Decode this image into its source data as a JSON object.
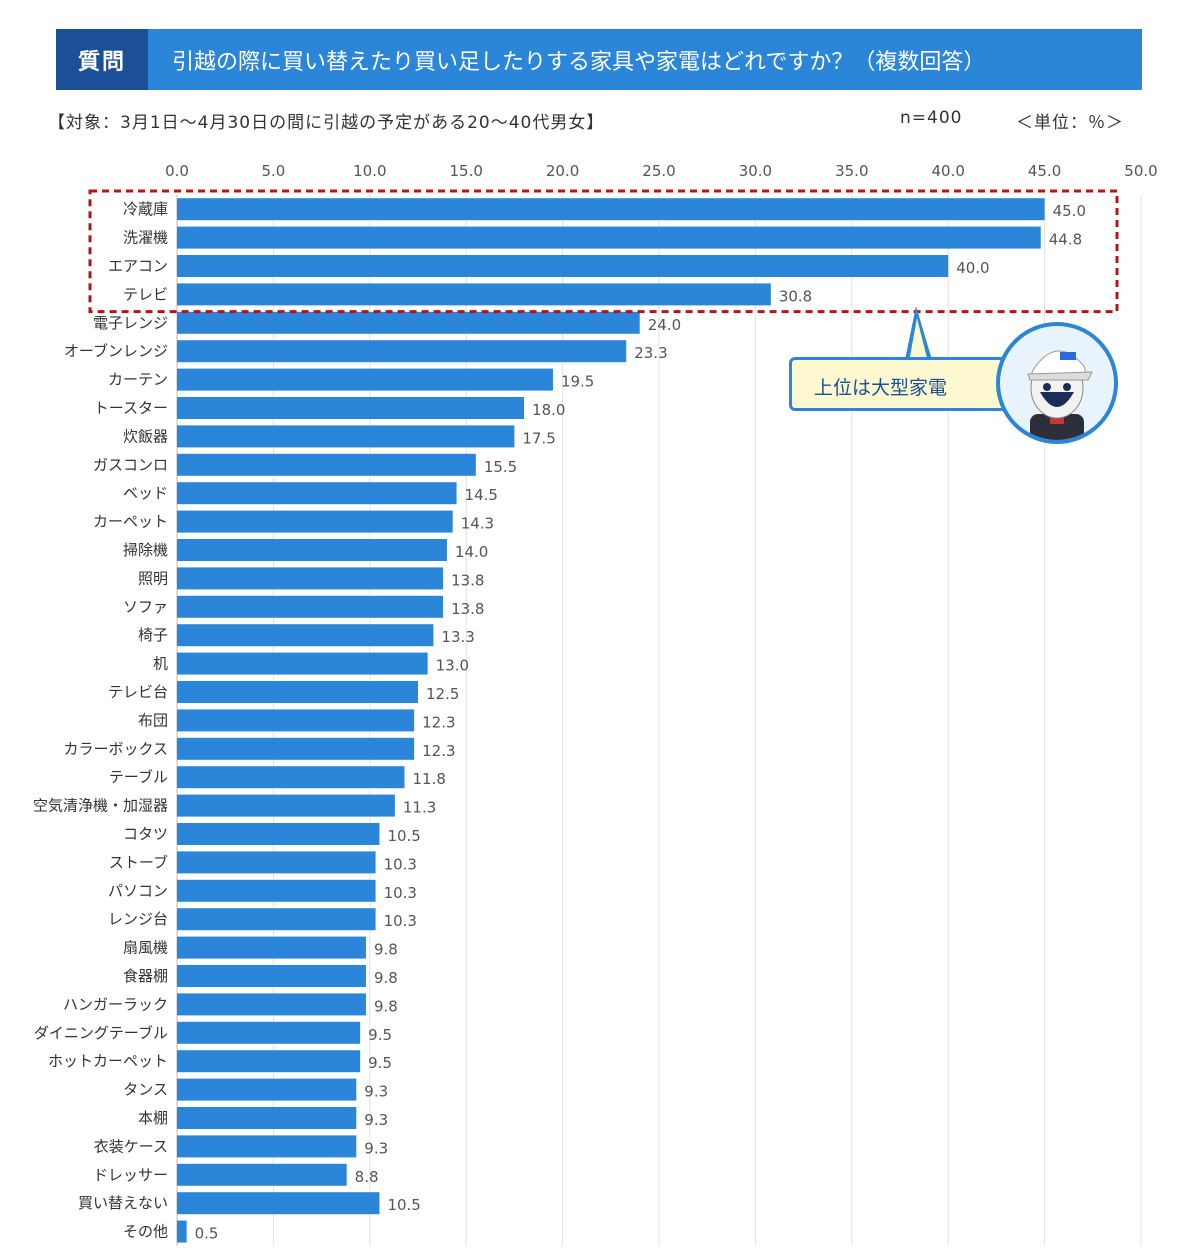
{
  "header": {
    "question_label": "質問",
    "question_text": "引越の際に買い替えたり買い足したりする家具や家電はどれですか？（複数回答）",
    "target_text": "【対象：3月1日～4月30日の間に引越の予定がある20～40代男女】",
    "sample_text": "n=400",
    "unit_text": "＜単位：％＞"
  },
  "callout": {
    "text": "上位は大型家電"
  },
  "colors": {
    "bar": "#2b86d9",
    "title_bar": "#2b86d9",
    "label_box": "#1b4f97",
    "highlight": "#b01818",
    "callout_bg": "#fdf8d0"
  },
  "chart_data": {
    "type": "bar",
    "orientation": "horizontal",
    "xlim": [
      0,
      50
    ],
    "ticks": [
      "0.0",
      "5.0",
      "10.0",
      "15.0",
      "20.0",
      "25.0",
      "30.0",
      "35.0",
      "40.0",
      "45.0",
      "50.0"
    ],
    "grid": true,
    "categories": [
      "冷蔵庫",
      "洗濯機",
      "エアコン",
      "テレビ",
      "電子レンジ",
      "オーブンレンジ",
      "カーテン",
      "トースター",
      "炊飯器",
      "ガスコンロ",
      "ベッド",
      "カーペット",
      "掃除機",
      "照明",
      "ソファ",
      "椅子",
      "机",
      "テレビ台",
      "布団",
      "カラーボックス",
      "テーブル",
      "空気清浄機・加湿器",
      "コタツ",
      "ストーブ",
      "パソコン",
      "レンジ台",
      "扇風機",
      "食器棚",
      "ハンガーラック",
      "ダイニングテーブル",
      "ホットカーペット",
      "タンス",
      "本棚",
      "衣装ケース",
      "ドレッサー",
      "買い替えない",
      "その他"
    ],
    "values": [
      45.0,
      44.8,
      40.0,
      30.8,
      24.0,
      23.3,
      19.5,
      18.0,
      17.5,
      15.5,
      14.5,
      14.3,
      14.0,
      13.8,
      13.8,
      13.3,
      13.0,
      12.5,
      12.3,
      12.3,
      11.8,
      11.3,
      10.5,
      10.3,
      10.3,
      10.3,
      9.8,
      9.8,
      9.8,
      9.5,
      9.5,
      9.3,
      9.3,
      9.3,
      8.8,
      10.5,
      0.5
    ],
    "value_labels": [
      "45.0",
      "44.8",
      "40.0",
      "30.8",
      "24.0",
      "23.3",
      "19.5",
      "18.0",
      "17.5",
      "15.5",
      "14.5",
      "14.3",
      "14.0",
      "13.8",
      "13.8",
      "13.3",
      "13.0",
      "12.5",
      "12.3",
      "12.3",
      "11.8",
      "11.3",
      "10.5",
      "10.3",
      "10.3",
      "10.3",
      "9.8",
      "9.8",
      "9.8",
      "9.5",
      "9.5",
      "9.3",
      "9.3",
      "9.3",
      "8.8",
      "10.5",
      "0.5"
    ],
    "highlighted_count": 4
  }
}
